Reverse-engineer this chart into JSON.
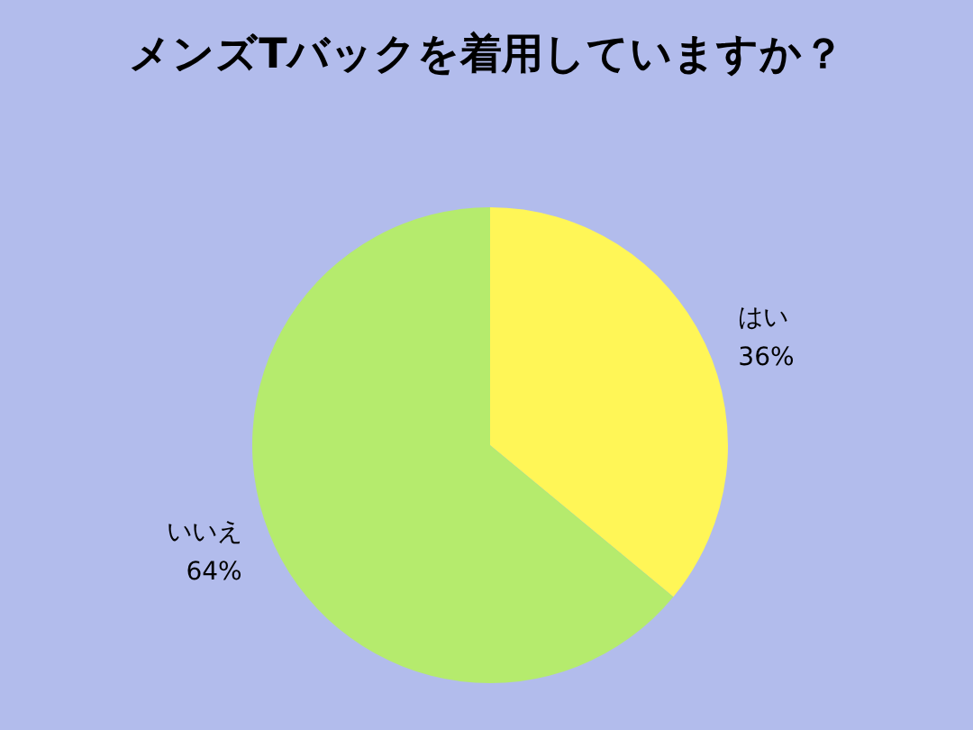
{
  "chart_data": {
    "type": "pie",
    "title": "メンズTバックを着用していますか？",
    "categories": [
      "はい",
      "いいえ"
    ],
    "values": [
      36,
      64
    ],
    "value_labels": [
      "36%",
      "64%"
    ],
    "colors": [
      "#fff657",
      "#b5eb6d"
    ],
    "legend": false
  }
}
